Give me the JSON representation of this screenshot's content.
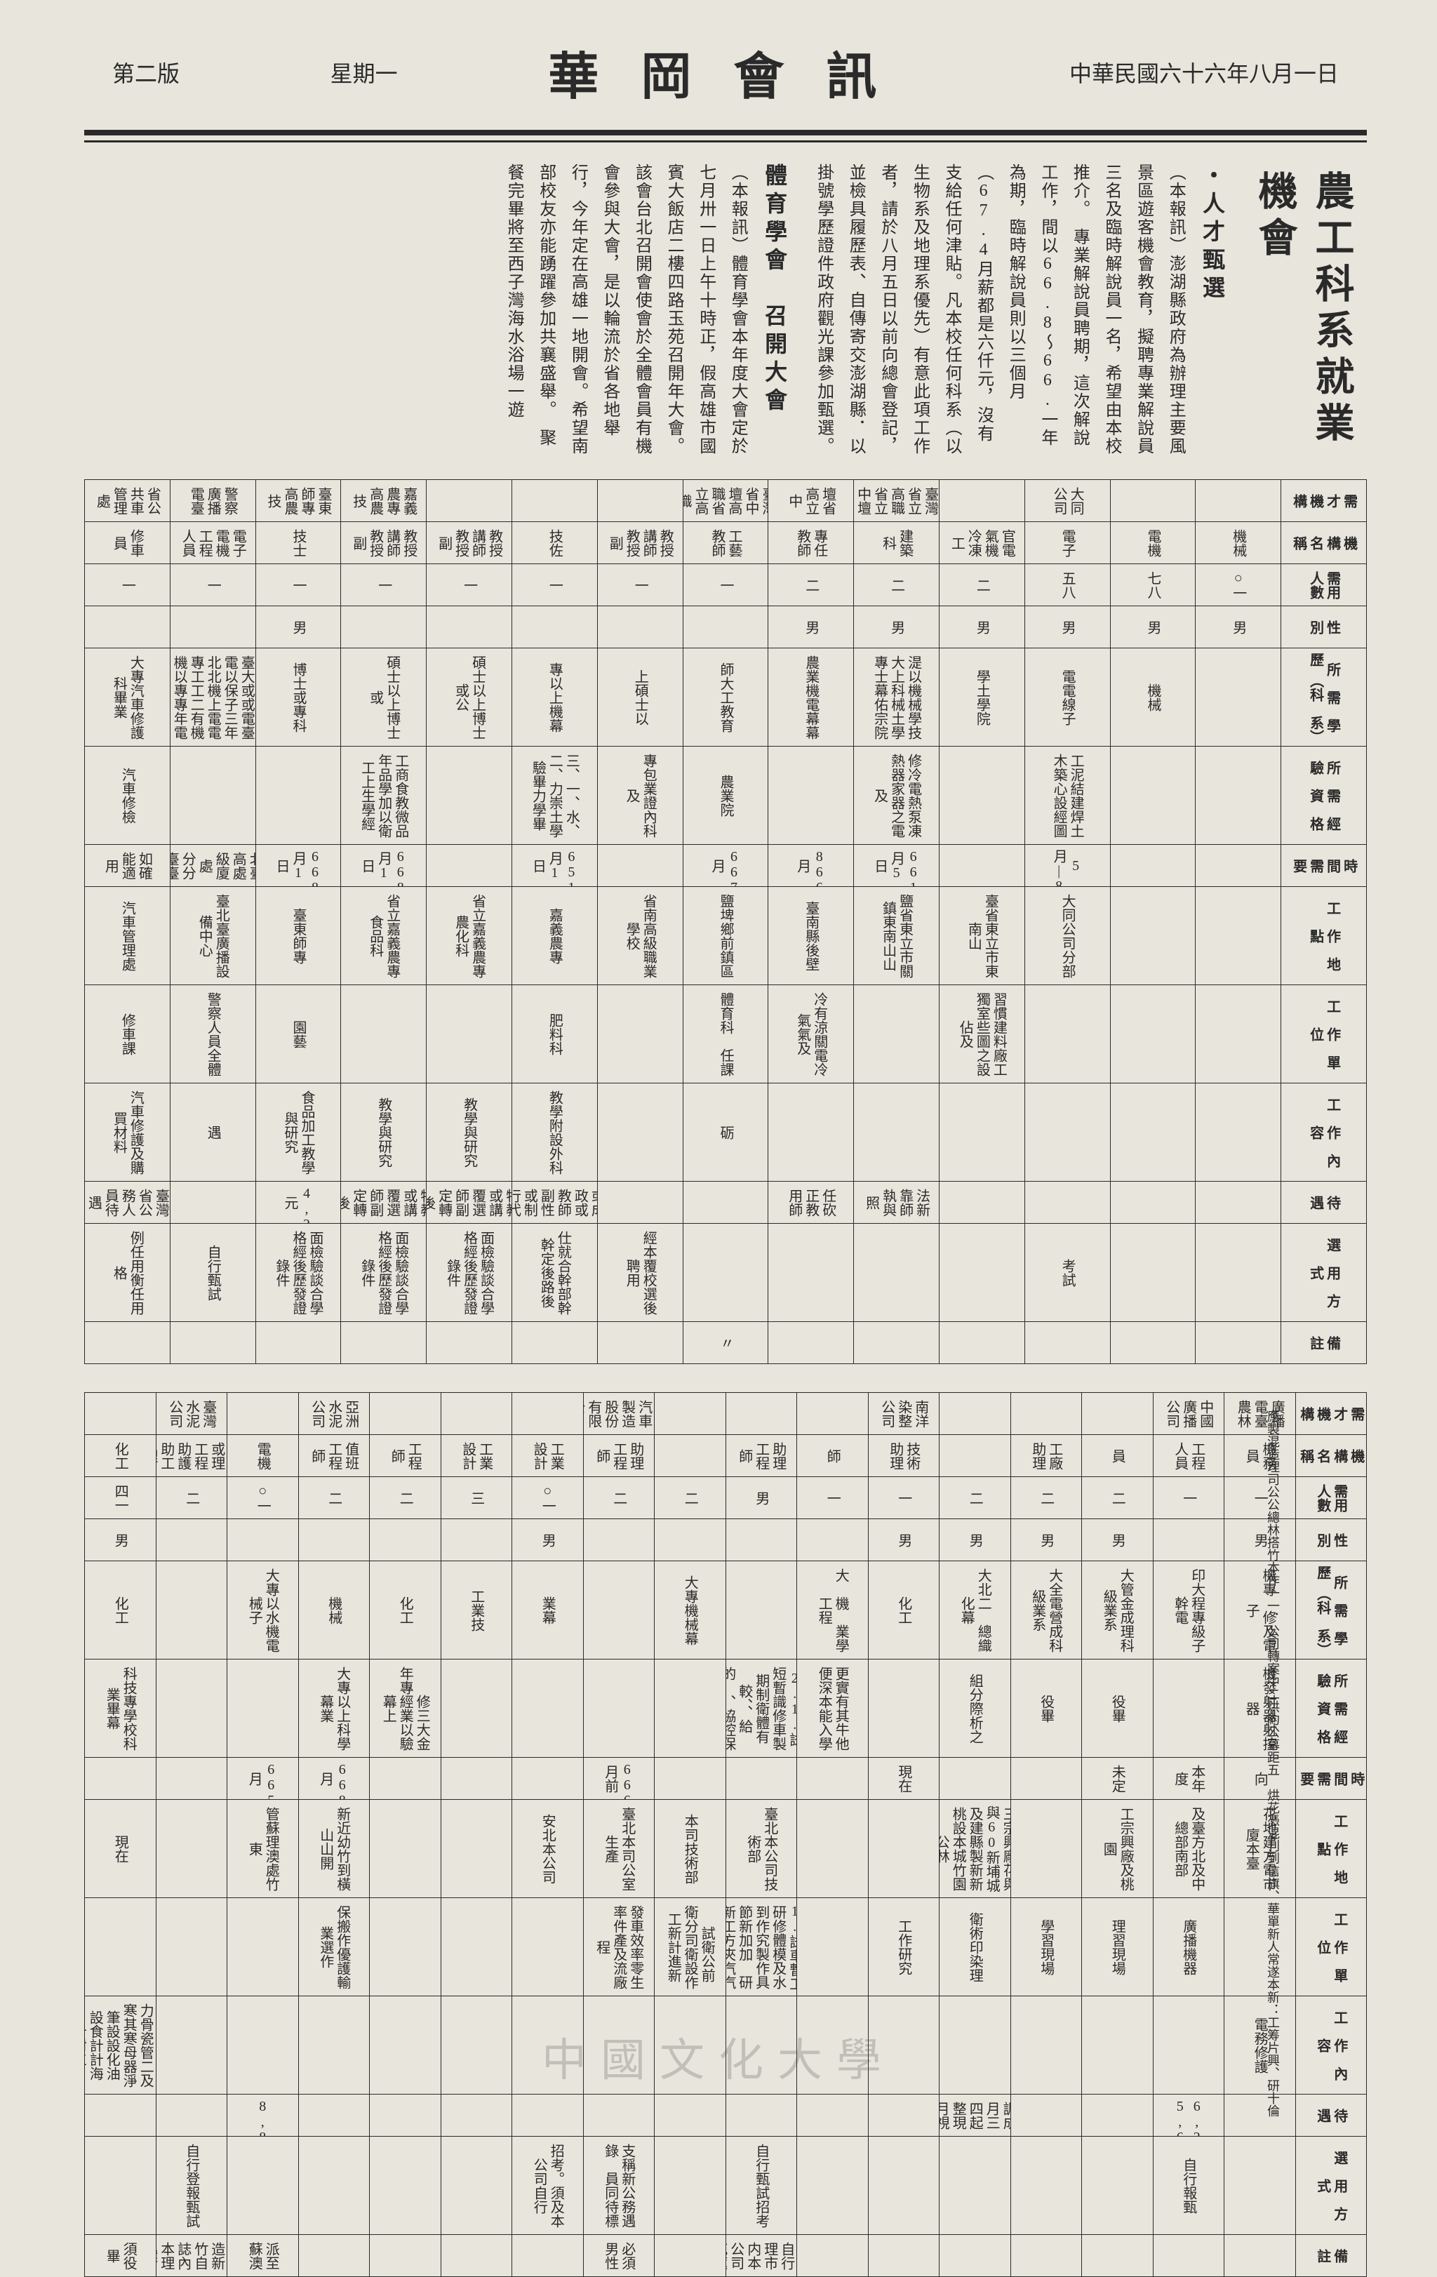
{
  "header": {
    "date_right": "中華民國六十六年八月一日",
    "title_center": "華岡會訊",
    "weekday": "星期一",
    "edition_left": "第二版"
  },
  "side_title": "農工科系就業機會",
  "articles": [
    {
      "heading": "・人才甄選",
      "body": "（本報訊）澎湖縣政府為辦理主要風景區遊客機會教育，擬聘專業解說員三名及臨時解說員一名，希望由本校推介。　專業解說員聘期，這次解說工作，間以66.8～66.一年為期，臨時解說員則以三個月（67.4月薪都是六仟元，沒有支給任何津貼。凡本校任何科系（以生物系及地理系優先）有意此項工作者，請於八月五日以前向總會登記，並檢具履歷表、自傳寄交澎湖縣．以掛號學歷證件政府觀光課參加甄選。"
    },
    {
      "heading": "體育學會　召開大會",
      "body": "（本報訊）體育學會本年度大會定於七月卅一日上午十時正，假高雄市國賓大飯店二樓四路玉苑召開年大會。該會台北召開會使會於全體會員有機會參與大會，是以輪流於省各地舉行，今年定在高雄一地開會。希望南部校友亦能踴躍參加共襄盛舉。　聚餐完畢將至西子灣海水浴場一遊"
    }
  ],
  "table1": {
    "row_headers": [
      "需　才　機　構",
      "機　構　名　稱",
      "需用人數",
      "性　　別",
      "所　需　學　歷　（科　系）",
      "所　需　經　驗　資　格",
      "時　間　需　要",
      "工　作　地　點",
      "工　作　單　位",
      "工　作　內　容",
      "待　　遇",
      "選　用　方　式",
      "備　　註"
    ],
    "cols": [
      {
        "vals": [
          "省公共車管理處",
          "修車員",
          "一",
          "",
          "大專汽車修護科畢業",
          "汽車修檢",
          "如確能適用",
          "汽車管理處",
          "修車課",
          "汽車修護及購買材料",
          "臺灣省公務人員待遇",
          "例任用衡任用格",
          "　"
        ]
      },
      {
        "vals": [
          "警察廣播電臺",
          "電子電機工程人員",
          "一",
          "",
          "資備格公大兇臺大或或電臺電以保子三年北北機上電電專工工二有機機以專專年電信技上程或",
          "　",
          "北臺高處級廈處　分分　臺臺",
          "臺北臺廣播設備中心",
          "警察人員全體",
          "遇",
          "",
          "自行甄試",
          ""
        ]
      },
      {
        "vals": [
          "臺東師專高農技",
          "技士",
          "一",
          "男",
          "博士或專科",
          "　",
          "668月1日",
          "臺東師專",
          "園藝",
          "食品加工教學與研究",
          "4,200元",
          "面檢驗談合學格經後歷發證錄件",
          ""
        ]
      },
      {
        "vals": [
          "嘉義農專高農技",
          "教授講師教授副",
          "一",
          "",
          "碩士以上博士或",
          "工商食教微品年品學加以衛工上生學經",
          "668月1日",
          "省立嘉義農專食品科",
          "　",
          "教學與研究",
          "特教或講覆選師副定轉後",
          "面檢驗談合學格經後歷發證錄件",
          ""
        ]
      },
      {
        "vals": [
          "",
          "教授講師教授副",
          "一",
          "",
          "碩士以上博士或公",
          "　",
          "",
          "省立嘉義農專農化科",
          "",
          "教學與研究",
          "特教或講覆選師副定轉後",
          "面檢驗談合學格經後歷發證錄件",
          ""
        ]
      },
      {
        "vals": [
          "",
          "技佐",
          "一",
          "",
          "專以上機幕",
          "三、一、水、二、力崇土學驗畢力學畢",
          "651月1日",
          "嘉義農專",
          "肥料科",
          "教學附設外科",
          "選拔或成政或教師副性或制行代後",
          "仕就合幹部幹幹定後路後",
          ""
        ]
      },
      {
        "vals": [
          "",
          "教授講師教授副",
          "一",
          "",
          "上碩士以",
          "專包業證內科及",
          "",
          "省南高級職業學校",
          "",
          "",
          "",
          "經本覆校選後聘用",
          ""
        ]
      },
      {
        "vals": [
          "臺灣省中壇高職省立高職",
          "工藝教師",
          "一",
          "",
          "師大工教育",
          "農業院",
          "667月",
          "鹽埤鄉前鎮區",
          "體育科　任課",
          "砺",
          "",
          ""
        ]
      },
      {
        "vals": [
          "壇省高立中",
          "專任教師",
          "二",
          "男",
          "農業機電幕幕",
          "",
          "866月",
          "臺南縣後壁",
          "冷有涼關電冷氣氣及",
          "",
          "任砍正教用師",
          "",
          ""
        ]
      },
      {
        "vals": [
          "臺灣省立高職省立中壇",
          "建築科",
          "二",
          "男",
          "湜以機械學技大上科械土學專士幕佑宗院",
          "修冷電熱泵凍熱器家器之電及",
          "661月5日",
          "鹽省東立市關鎮東南山山",
          "",
          "",
          "法新靠師執與照",
          "",
          ""
        ]
      },
      {
        "vals": [
          "",
          "官電氣機冷凍工",
          "二",
          "男",
          "學土學院",
          "　",
          "",
          "臺省東立市東南山",
          "習慣建料廠工獨室些圖之設佔及",
          "",
          "",
          "",
          ""
        ]
      },
      {
        "vals": [
          "大同公司",
          "電子",
          "五八",
          "男",
          "電電線子",
          "工泥結建焊土木築心設經圖",
          "5月|8",
          "大同公司分部",
          "",
          "",
          "",
          "考試",
          ""
        ]
      },
      {
        "vals": [
          "",
          "電機",
          "七八",
          "男",
          "機械",
          "",
          "",
          "",
          "",
          "",
          "",
          "",
          ""
        ]
      },
      {
        "vals": [
          "",
          "機械",
          "○一",
          "男",
          "",
          "",
          "",
          "",
          "",
          "",
          "",
          "",
          ""
        ]
      }
    ]
  },
  "table2": {
    "cols": [
      {
        "vals": [
          "",
          "化工",
          "四一",
          "男",
          "化工",
          "科技專學校科業畢幕",
          "",
          "現在",
          "",
          "5.4.3.2.1.力骨瓷管二及寒其寒母器淨筆設設化油　設食計計海　計附工",
          "",
          "",
          "須役畢"
        ]
      },
      {
        "vals": [
          "臺灣水泥公司",
          "督理或理工程助護助工理",
          "二",
          "",
          "　",
          "　",
          "",
          "",
          "",
          "",
          "",
          "自行登報甄試",
          "工公司誌造新竹自誌內本理選　製"
        ]
      },
      {
        "vals": [
          "",
          "電機",
          "○一",
          "",
          "大專以水機電械子",
          "",
          "665月",
          "管蘇理澳處竹東",
          "",
          "",
          "8,800",
          "",
          "派至蘇澳"
        ]
      },
      {
        "vals": [
          "亞洲水泥公司",
          "值班工程師",
          "二",
          "",
          "機械",
          "大專以上科學幕業",
          "668月",
          "新近幼竹到橫山山開",
          "保搬作優護輸業選作",
          "",
          "",
          "",
          "",
          "　"
        ]
      },
      {
        "vals": [
          "",
          "工程師",
          "二",
          "",
          "化工",
          "　　修三大金年專經業以驗幕上",
          "",
          "",
          "　",
          "　",
          "",
          "",
          ""
        ]
      },
      {
        "vals": [
          "",
          "工業設計",
          "三",
          "",
          "工業技",
          "　",
          "",
          "",
          "",
          "",
          "",
          "　",
          ""
        ]
      },
      {
        "vals": [
          "",
          "工業設計",
          "○一",
          "男",
          "業幕",
          "　",
          "",
          "安北本公司",
          "",
          "",
          "",
          "招考。須及本公司自行",
          ""
        ]
      },
      {
        "vals": [
          "裕隆汽車製造股份有限公司",
          "助理工程師",
          "二",
          "",
          "　",
          "　",
          "666月前",
          "臺北本司公室生產",
          "發車效率零生率件產及流廠程",
          "",
          "",
          "支稱新公務遇錄　員同待標",
          "必須男性"
        ]
      },
      {
        "vals": [
          "",
          "",
          "二",
          "",
          "大專機械幕",
          "",
          "",
          "本司技術部",
          "　試衛公前　衛分司衛設作工新計進新",
          "",
          "",
          "",
          ""
        ]
      },
      {
        "vals": [
          "",
          "助理工程師",
          "男",
          "",
          "　",
          "　　2.1.試短暫識修車製期制衛體有　　較、、給的　、協控保修機的制養械",
          "",
          "臺北本公司技術部",
          "5.4.3.　1.試車暫工研修體模及水到作究製作具節新加加　研新工方夾汽汽法人工調調",
          "",
          "",
          "自行甄試招考",
          "內本公司自行　理市内本公司花蓮製選"
        ]
      },
      {
        "vals": [
          "",
          "師",
          "一",
          "",
          "大　機　業學工程",
          "更實有其牛他便深本能入學",
          "",
          "",
          "",
          "",
          "",
          "",
          ""
        ]
      },
      {
        "vals": [
          "南洋染整公司",
          "技術助理",
          "一",
          "男",
          "化工",
          "　",
          "現在",
          "　",
          "工作研究",
          "",
          "",
          "",
          ""
        ]
      },
      {
        "vals": [
          "",
          "",
          "二",
          "男",
          "大北二　總織化幕",
          "組分際析之",
          "",
          "三宗興廠花與與60新埔城及建縣製新新桃設本城竹園公林",
          "衛術印染理",
          "",
          "調成月三四起整現月視",
          "",
          ""
        ]
      },
      {
        "vals": [
          "",
          "工廠助理",
          "二",
          "男",
          "大全電營成科級業系",
          "役畢",
          "",
          "",
          "學習現場",
          "　",
          "",
          "",
          ""
        ]
      },
      {
        "vals": [
          "",
          "員",
          "二",
          "男",
          "大管金成理科級業系",
          "役畢",
          "未定",
          "工宗興廠及桃園",
          "理習現場",
          "　",
          "",
          "",
          ""
        ]
      },
      {
        "vals": [
          "中國廣播公司",
          "工程人員",
          "一",
          "",
          "印大程專級子幹電",
          "",
          "本年度",
          "及臺方北及中總部南部",
          "廣播機器",
          "",
          "6,200 5,600",
          "自行報甄",
          ""
        ]
      },
      {
        "vals": [
          "廣播電臺農林",
          "機務員",
          "一",
          "男",
          "機專　修及電子",
          "機發射器射控器",
          "向",
          "花地建方電市廈本臺",
          "　",
          "電務修護",
          "",
          "",
          ""
        ]
      }
    ]
  },
  "footnote_lines": "應製混造理司公公總林搭竹本作一一．公司轉案中二烘約公幕距五　烘花憑混刊到信旗、華單新人常遂本新：工筹片興、研十倫",
  "watermark": "中國文化大學",
  "colors": {
    "paper": "#e8e5dc",
    "ink": "#2a2a2a"
  }
}
